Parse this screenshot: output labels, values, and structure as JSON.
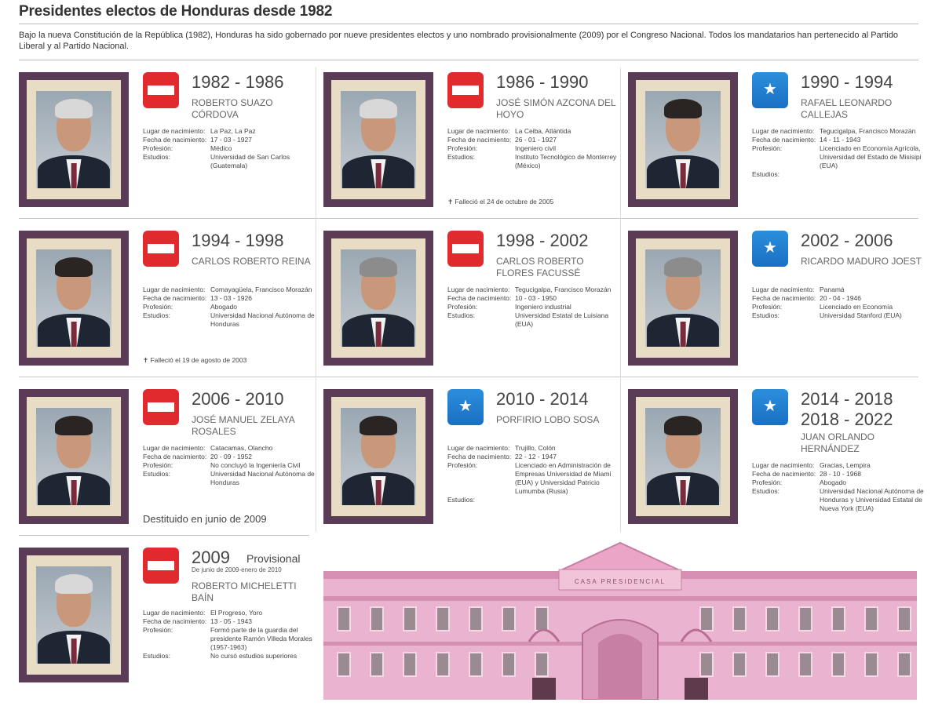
{
  "title": "Presidentes electos de Honduras desde 1982",
  "intro": "Bajo la nueva Constitución de la República (1982), Honduras ha sido gobernado por nueve presidentes electos y uno nombrado provisionalmente (2009) por el Congreso Nacional. Todos los mandatarios han pertenecido al Partido Liberal y al Partido Nacional.",
  "labels": {
    "birthplace": "Lugar de nacimiento:",
    "birthdate": "Fecha de nacimiento:",
    "profession": "Profesión:",
    "studies": "Estudios:"
  },
  "colors": {
    "liberal": "#e02a2e",
    "nacional": "#1a6fc4",
    "frame": "#5b3c57",
    "building": "#e8a9c8"
  },
  "presidents": [
    {
      "years": "1982 - 1986",
      "name": "ROBERTO SUAZO CÓRDOVA",
      "party": "liberal",
      "birthplace": "La Paz, La Paz",
      "birthdate": "17 - 03 - 1927",
      "profession": "Médico",
      "studies": "Universidad de San Carlos (Guatemala)",
      "note": ""
    },
    {
      "years": "1986 - 1990",
      "name": "JOSÉ SIMÓN AZCONA DEL HOYO",
      "party": "liberal",
      "birthplace": "La Ceiba, Atlántida",
      "birthdate": "26 - 01 - 1927",
      "profession": "Ingeniero civil",
      "studies": "Instituto Tecnológico de Monterrey (México)",
      "note": "✝ Falleció el 24 de octubre de 2005"
    },
    {
      "years": "1990 - 1994",
      "name": "RAFAEL LEONARDO CALLEJAS",
      "party": "nacional",
      "birthplace": "Tegucigalpa, Francisco Morazán",
      "birthdate": "14 - 11 - 1943",
      "profession": "Licenciado en Economía Agrícola, Universidad del Estado de Misisipi (EUA)",
      "studies": "",
      "note": ""
    },
    {
      "years": "1994 - 1998",
      "name": "CARLOS ROBERTO REINA",
      "party": "liberal",
      "birthplace": "Comayagüela, Francisco Morazán",
      "birthdate": "13 - 03 - 1926",
      "profession": "Abogado",
      "studies": "Universidad Nacional Autónoma de Honduras",
      "note": "✝ Falleció el 19 de agosto de 2003"
    },
    {
      "years": "1998 - 2002",
      "name": "CARLOS ROBERTO FLORES FACUSSÉ",
      "party": "liberal",
      "birthplace": "Tegucigalpa, Francisco Morazán",
      "birthdate": "10 - 03 - 1950",
      "profession": "Ingeniero industrial",
      "studies": "Universidad Estatal de Luisiana (EUA)",
      "note": ""
    },
    {
      "years": "2002 - 2006",
      "name": "RICARDO MADURO JOEST",
      "party": "nacional",
      "birthplace": "Panamá",
      "birthdate": "20 - 04 - 1946",
      "profession": "Licenciado en Economía",
      "studies": "Universidad Stanford (EUA)",
      "note": ""
    },
    {
      "years": "2006 - 2010",
      "name": "JOSÉ MANUEL ZELAYA ROSALES",
      "party": "liberal",
      "birthplace": "Catacamas, Olancho",
      "birthdate": "20 - 09 - 1952",
      "profession": "No concluyó la Ingeniería Civil",
      "studies": "Universidad Nacional Autónoma de Honduras",
      "note": "Destituido en junio de 2009"
    },
    {
      "years": "2010 - 2014",
      "name": "PORFIRIO LOBO SOSA",
      "party": "nacional",
      "birthplace": "Trujillo, Colón",
      "birthdate": "22 - 12 - 1947",
      "profession": "Licenciado en Administración de Empresas Universidad de Miami (EUA) y Universidad Patricio Lumumba (Rusia)",
      "studies": "",
      "note": ""
    },
    {
      "years": "2014 - 2018",
      "years2": "2018 - 2022",
      "name": "JUAN ORLANDO HERNÁNDEZ",
      "party": "nacional",
      "birthplace": "Gracias, Lempira",
      "birthdate": "28 - 10 - 1968",
      "profession": "Abogado",
      "studies": "Universidad Nacional Autónoma de Honduras y Universidad Estatal de Nueva York (EUA)",
      "note": ""
    },
    {
      "years": "2009",
      "provisional": "Provisional",
      "subyears": "De junio de 2009-enero de 2010",
      "name": "ROBERTO MICHELETTI BAÍN",
      "party": "liberal",
      "birthplace": "El Progreso, Yoro",
      "birthdate": "13 - 05 - 1943",
      "profession": "Formó parte de la guardia del presidente Ramón Villeda Morales (1957-1963)",
      "studies": "No cursó estudios superiores",
      "note": ""
    }
  ],
  "building_sign": "CASA PRESIDENCIAL"
}
